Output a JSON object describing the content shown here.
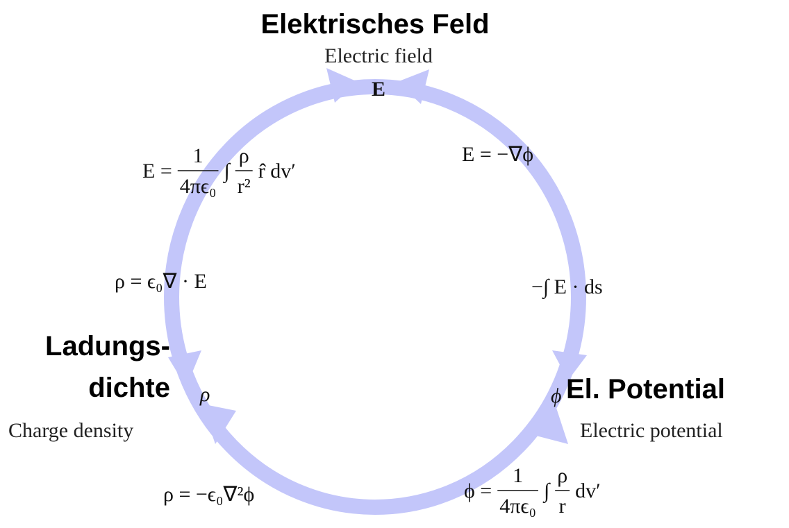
{
  "nodes": [
    {
      "title_lines": [
        "Elektrisches Feld"
      ],
      "subtitle": "Electric field",
      "symbol": "E"
    },
    {
      "title_lines": [
        "Ladungs-",
        "dichte"
      ],
      "subtitle": "Charge density",
      "symbol": "ρ"
    },
    {
      "title_lines": [
        "El. Potential"
      ],
      "subtitle": "Electric potential",
      "symbol": "ϕ"
    }
  ],
  "formulas": [
    {
      "parts": [
        {
          "text": "E ="
        },
        {
          "num": "1",
          "den": "4πϵ₀"
        },
        {
          "text": "∫"
        },
        {
          "num": "ρ",
          "den": "r²"
        },
        {
          "text": "r̂ dv′"
        }
      ]
    },
    {
      "parts": [
        {
          "text": "E = −∇ϕ"
        }
      ]
    },
    {
      "parts": [
        {
          "text": "ρ = ϵ₀∇ · E"
        }
      ]
    },
    {
      "parts": [
        {
          "text": "−∫ E · ds"
        }
      ]
    },
    {
      "parts": [
        {
          "text": "ρ = −ϵ₀∇²ϕ"
        }
      ]
    },
    {
      "parts": [
        {
          "text": "ϕ ="
        },
        {
          "num": "1",
          "den": "4πϵ₀"
        },
        {
          "text": "∫"
        },
        {
          "num": "ρ",
          "den": "r"
        },
        {
          "text": "dv′"
        }
      ]
    }
  ]
}
